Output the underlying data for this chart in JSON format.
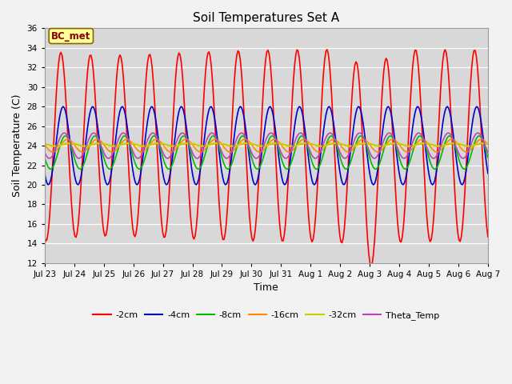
{
  "title": "Soil Temperatures Set A",
  "xlabel": "Time",
  "ylabel": "Soil Temperature (C)",
  "ylim": [
    12,
    36
  ],
  "yticks": [
    12,
    14,
    16,
    18,
    20,
    22,
    24,
    26,
    28,
    30,
    32,
    34,
    36
  ],
  "plot_bg_color": "#d8d8d8",
  "fig_bg_color": "#f2f2f2",
  "annotation_text": "BC_met",
  "annotation_color": "#8b0000",
  "annotation_bg": "#ffff99",
  "legend_entries": [
    "-2cm",
    "-4cm",
    "-8cm",
    "-16cm",
    "-32cm",
    "Theta_Temp"
  ],
  "line_colors": [
    "#ff0000",
    "#0000cc",
    "#00bb00",
    "#ff8800",
    "#cccc00",
    "#bb44bb"
  ],
  "line_widths": [
    1.2,
    1.2,
    1.2,
    1.2,
    1.8,
    1.2
  ]
}
